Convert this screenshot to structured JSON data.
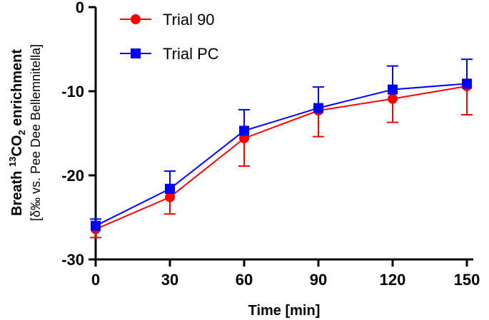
{
  "chart_data": {
    "type": "line",
    "title": "",
    "xlabel": "Time [min]",
    "ylabel": {
      "main": "Breath ",
      "superscript": "13",
      "chem": "CO",
      "subscript": "2",
      "suffix": " enrichment",
      "line2": "[δ‰ vs. Pee Dee Bellemnitella]"
    },
    "x": [
      0,
      30,
      60,
      90,
      120,
      150
    ],
    "xticks": [
      "0",
      "30",
      "60",
      "90",
      "120",
      "150"
    ],
    "xlim": [
      0,
      150
    ],
    "ylim": [
      -30,
      0
    ],
    "yticks": [
      0,
      -10,
      -20,
      -30
    ],
    "ytick_labels": [
      "0",
      "-10",
      "-20",
      "-30"
    ],
    "legend_position": "top-left",
    "series": [
      {
        "name": "Trial 90",
        "color": "#ff0000",
        "marker": "circle",
        "values": [
          -26.4,
          -22.6,
          -15.6,
          -12.3,
          -10.9,
          -9.4
        ],
        "error": [
          1.0,
          2.0,
          3.3,
          3.1,
          2.8,
          3.4
        ],
        "error_direction": "down"
      },
      {
        "name": "Trial PC",
        "color": "#0000ff",
        "marker": "square",
        "values": [
          -26.0,
          -21.6,
          -14.7,
          -12.0,
          -9.8,
          -9.1
        ],
        "error": [
          0.8,
          2.1,
          2.5,
          2.5,
          2.8,
          2.9
        ],
        "error_direction": "up"
      }
    ]
  }
}
